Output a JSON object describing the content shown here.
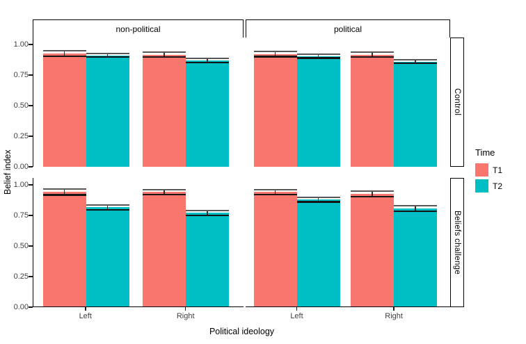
{
  "chart_data": {
    "type": "bar",
    "title": "",
    "xlabel": "Political ideology",
    "ylabel": "Belief index",
    "ylim": [
      0,
      1
    ],
    "yticks": [
      1.0,
      0.75,
      0.5,
      0.25,
      0.0
    ],
    "ytick_labels": [
      "1.00",
      "0.75",
      "0.50",
      "0.25",
      "0.00"
    ],
    "categories": [
      "Left",
      "Right"
    ],
    "series": [
      "T1",
      "T2"
    ],
    "facet_cols": [
      "non-political",
      "political"
    ],
    "facet_rows": [
      "Control",
      "Beliefs challenge"
    ],
    "legend": {
      "title": "Time",
      "entries": [
        {
          "label": "T1",
          "color": "#F8766D"
        },
        {
          "label": "T2",
          "color": "#00BFC4"
        }
      ]
    },
    "panels": [
      {
        "row": "Control",
        "col": "non-political",
        "bars": [
          {
            "category": "Left",
            "series": "T1",
            "mean": 0.925,
            "lo": 0.903,
            "hi": 0.948
          },
          {
            "category": "Left",
            "series": "T2",
            "mean": 0.91,
            "lo": 0.895,
            "hi": 0.926
          },
          {
            "category": "Right",
            "series": "T1",
            "mean": 0.917,
            "lo": 0.897,
            "hi": 0.938
          },
          {
            "category": "Right",
            "series": "T2",
            "mean": 0.87,
            "lo": 0.854,
            "hi": 0.886
          }
        ]
      },
      {
        "row": "Control",
        "col": "political",
        "bars": [
          {
            "category": "Left",
            "series": "T1",
            "mean": 0.92,
            "lo": 0.9,
            "hi": 0.941
          },
          {
            "category": "Left",
            "series": "T2",
            "mean": 0.905,
            "lo": 0.889,
            "hi": 0.921
          },
          {
            "category": "Right",
            "series": "T1",
            "mean": 0.915,
            "lo": 0.895,
            "hi": 0.935
          },
          {
            "category": "Right",
            "series": "T2",
            "mean": 0.86,
            "lo": 0.844,
            "hi": 0.876
          }
        ]
      },
      {
        "row": "Beliefs challenge",
        "col": "non-political",
        "bars": [
          {
            "category": "Left",
            "series": "T1",
            "mean": 0.935,
            "lo": 0.912,
            "hi": 0.959
          },
          {
            "category": "Left",
            "series": "T2",
            "mean": 0.81,
            "lo": 0.789,
            "hi": 0.832
          },
          {
            "category": "Right",
            "series": "T1",
            "mean": 0.936,
            "lo": 0.914,
            "hi": 0.957
          },
          {
            "category": "Right",
            "series": "T2",
            "mean": 0.765,
            "lo": 0.744,
            "hi": 0.786
          }
        ]
      },
      {
        "row": "Beliefs challenge",
        "col": "political",
        "bars": [
          {
            "category": "Left",
            "series": "T1",
            "mean": 0.935,
            "lo": 0.913,
            "hi": 0.957
          },
          {
            "category": "Left",
            "series": "T2",
            "mean": 0.874,
            "lo": 0.855,
            "hi": 0.894
          },
          {
            "category": "Right",
            "series": "T1",
            "mean": 0.92,
            "lo": 0.898,
            "hi": 0.943
          },
          {
            "category": "Right",
            "series": "T2",
            "mean": 0.8,
            "lo": 0.779,
            "hi": 0.822
          }
        ]
      }
    ]
  },
  "colors": {
    "t1": "#F8766D",
    "t2": "#00BFC4",
    "axis_text": "#404040",
    "axis_line": "#000000"
  }
}
